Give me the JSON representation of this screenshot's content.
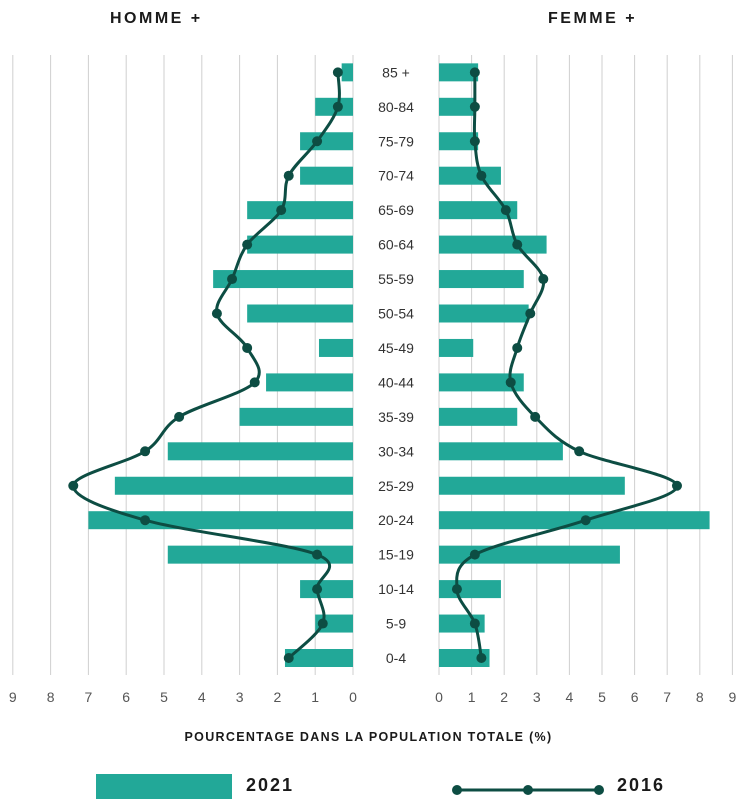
{
  "titles": {
    "left": "HOMME +",
    "right": "FEMME +"
  },
  "xlabel": "POURCENTAGE DANS LA POPULATION TOTALE (%)",
  "legend": {
    "series_2021": "2021",
    "series_2016": "2016"
  },
  "colors": {
    "bar_2021": "#22a898",
    "line_2016": "#0d4d43",
    "grid": "#cfcfcf",
    "tick_text": "#555555"
  },
  "chart_data": {
    "type": "bar",
    "categories": [
      "0-4",
      "5-9",
      "10-14",
      "15-19",
      "20-24",
      "25-29",
      "30-34",
      "35-39",
      "40-44",
      "45-49",
      "50-54",
      "55-59",
      "60-64",
      "65-69",
      "70-74",
      "75-79",
      "80-84",
      "85 +"
    ],
    "xlabel": "POURCENTAGE DANS LA POPULATION TOTALE (%)",
    "left_panel": {
      "title": "HOMME +",
      "xlim": [
        0,
        9
      ],
      "ticks": [
        "9",
        "8",
        "7",
        "6",
        "5",
        "4",
        "3",
        "2",
        "1",
        "0"
      ],
      "series": [
        {
          "name": "2021",
          "kind": "bar",
          "values": [
            1.8,
            1.0,
            1.4,
            4.9,
            7.0,
            6.3,
            4.9,
            3.0,
            2.3,
            0.9,
            2.8,
            3.7,
            2.8,
            2.8,
            1.4,
            1.4,
            1.0,
            0.3
          ]
        },
        {
          "name": "2016",
          "kind": "line",
          "values": [
            1.7,
            0.8,
            0.95,
            0.95,
            5.5,
            7.4,
            5.5,
            4.6,
            2.6,
            2.8,
            3.6,
            3.2,
            2.8,
            1.9,
            1.7,
            0.95,
            0.4,
            0.4
          ]
        }
      ]
    },
    "right_panel": {
      "title": "FEMME +",
      "xlim": [
        0,
        9
      ],
      "ticks": [
        "0",
        "1",
        "2",
        "3",
        "4",
        "5",
        "6",
        "7",
        "8",
        "9"
      ],
      "series": [
        {
          "name": "2021",
          "kind": "bar",
          "values": [
            1.55,
            1.4,
            1.9,
            5.55,
            8.3,
            5.7,
            3.8,
            2.4,
            2.6,
            1.05,
            2.75,
            2.6,
            3.3,
            2.4,
            1.9,
            1.2,
            1.1,
            1.2
          ]
        },
        {
          "name": "2016",
          "kind": "line",
          "values": [
            1.3,
            1.1,
            0.55,
            1.1,
            4.5,
            7.3,
            4.3,
            2.95,
            2.2,
            2.4,
            2.8,
            3.2,
            2.4,
            2.05,
            1.3,
            1.1,
            1.1,
            1.1
          ]
        }
      ]
    }
  }
}
